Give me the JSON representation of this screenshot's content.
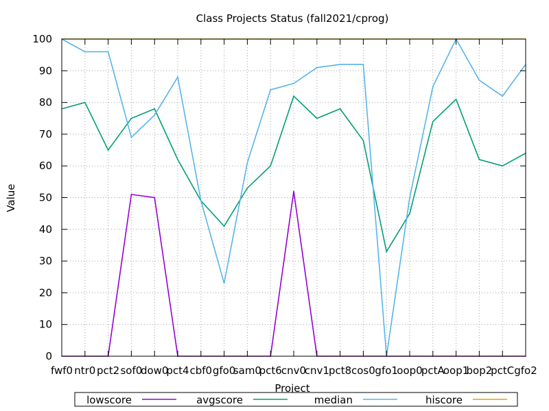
{
  "chart_data": {
    "type": "line",
    "title": "Class Projects Status (fall2021/cprog)",
    "xlabel": "Project",
    "ylabel": "Value",
    "ylim": [
      0,
      100
    ],
    "yticks": [
      0,
      10,
      20,
      30,
      40,
      50,
      60,
      70,
      80,
      90,
      100
    ],
    "grid": true,
    "legend_position": "bottom",
    "categories": [
      "fwf0",
      "ntr0",
      "pct2",
      "sof0",
      "dow0",
      "pct4",
      "cbf0",
      "gfo0",
      "sam0",
      "pct6",
      "cnv0",
      "cnv1",
      "pct8",
      "cos0",
      "gfo1",
      "oop0",
      "pctA",
      "oop1",
      "bop2",
      "pctC",
      "gfo2"
    ],
    "series": [
      {
        "name": "lowscore",
        "color": "#9400d3",
        "values": [
          0,
          0,
          0,
          51,
          50,
          0,
          0,
          0,
          0,
          0,
          52,
          0,
          0,
          0,
          0,
          0,
          0,
          0,
          0,
          0,
          0
        ]
      },
      {
        "name": "avgscore",
        "color": "#009e73",
        "values": [
          78,
          80,
          65,
          75,
          78,
          62,
          49,
          41,
          53,
          60,
          82,
          75,
          78,
          68,
          33,
          45,
          74,
          81,
          62,
          60,
          64
        ]
      },
      {
        "name": "median",
        "color": "#56b4e9",
        "values": [
          100,
          96,
          96,
          69,
          76,
          88,
          49,
          23,
          61,
          84,
          86,
          91,
          92,
          92,
          0,
          50,
          85,
          100,
          87,
          82,
          92
        ]
      },
      {
        "name": "hiscore",
        "color": "#e69f00",
        "values": [
          100,
          100,
          100,
          100,
          100,
          100,
          100,
          100,
          100,
          100,
          100,
          100,
          100,
          100,
          100,
          100,
          100,
          100,
          100,
          100,
          100
        ]
      }
    ]
  }
}
